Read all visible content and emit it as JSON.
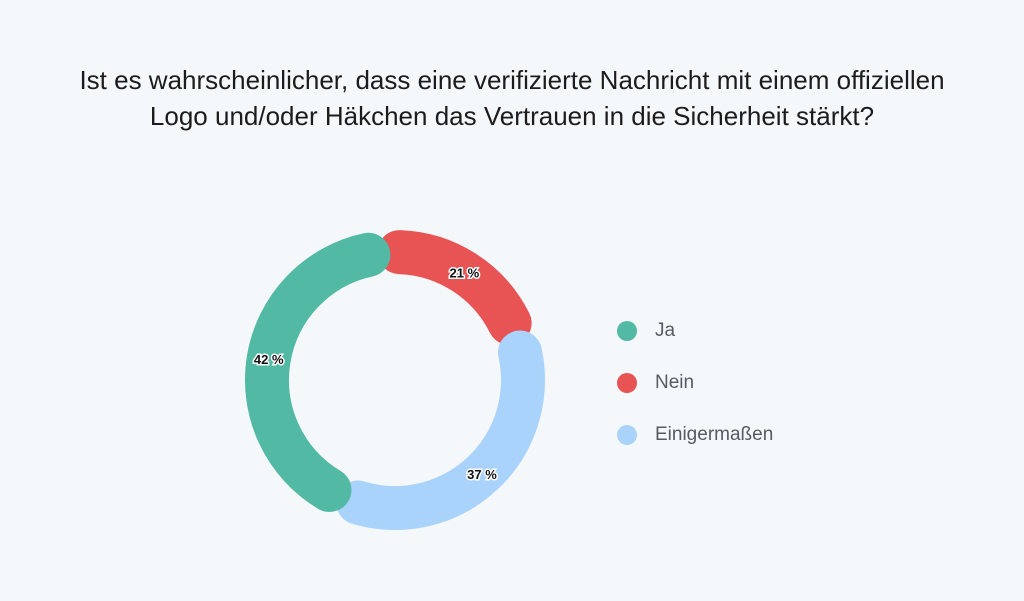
{
  "chart_data": {
    "type": "donut",
    "title": "Ist es wahrscheinlicher, dass eine verifizierte Nachricht mit einem offiziellen Logo und/oder Häkchen das Vertrauen in die Sicherheit stärkt?",
    "categories": [
      "Ja",
      "Nein",
      "Einigermaßen"
    ],
    "values": [
      42,
      21,
      37
    ],
    "labels": [
      "42 %",
      "21 %",
      "37 %"
    ],
    "colors": [
      "#52b9a5",
      "#e85354",
      "#aad3fc"
    ],
    "legend_position": "right"
  }
}
